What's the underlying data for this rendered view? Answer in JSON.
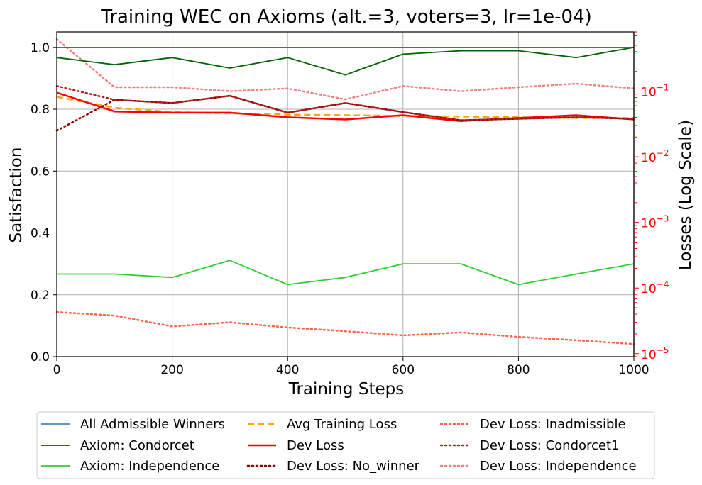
{
  "colors": {
    "right_axis": "#ff0000",
    "grid": "#b0b0b0"
  },
  "chart_data": {
    "type": "line",
    "title": "Training WEC on Axioms (alt.=3, voters=3, lr=1e-04)",
    "xlabel": "Training Steps",
    "ylabel": "Satisfaction",
    "y2label": "Losses (Log Scale)",
    "xlim": [
      0,
      1000
    ],
    "ylim": [
      0,
      1.05
    ],
    "y2lim": [
      9e-06,
      0.8
    ],
    "y2scale": "log",
    "grid": true,
    "legend_position": "bottom-outside",
    "x_ticks": [
      "0",
      "200",
      "400",
      "600",
      "800",
      "1000"
    ],
    "y_ticks": [
      "0.0",
      "0.2",
      "0.4",
      "0.6",
      "0.8",
      "1.0"
    ],
    "y2_ticks": [
      {
        "base": "10",
        "exp": "−5",
        "value": 1e-05
      },
      {
        "base": "10",
        "exp": "−4",
        "value": 0.0001
      },
      {
        "base": "10",
        "exp": "−3",
        "value": 0.001
      },
      {
        "base": "10",
        "exp": "−2",
        "value": 0.01
      },
      {
        "base": "10",
        "exp": "−1",
        "value": 0.1
      }
    ],
    "x": [
      0,
      100,
      200,
      300,
      400,
      500,
      600,
      700,
      800,
      900,
      1000
    ],
    "series": [
      {
        "name": "All Admissible Winners",
        "axis": "left",
        "color": "#1f77b4",
        "dash": "",
        "width": 1.6,
        "values": [
          1.0,
          1.0,
          1.0,
          1.0,
          1.0,
          1.0,
          1.0,
          1.0,
          1.0,
          1.0,
          1.0
        ]
      },
      {
        "name": "Axiom: Condorcet",
        "axis": "left",
        "color": "#006400",
        "dash": "",
        "width": 1.8,
        "values": [
          0.967,
          0.944,
          0.967,
          0.933,
          0.967,
          0.911,
          0.978,
          0.989,
          0.989,
          0.967,
          1.0
        ]
      },
      {
        "name": "Axiom: Independence",
        "axis": "left",
        "color": "#32cd32",
        "dash": "",
        "width": 1.8,
        "values": [
          0.267,
          0.267,
          0.256,
          0.311,
          0.233,
          0.256,
          0.3,
          0.3,
          0.233,
          0.267,
          0.3
        ]
      },
      {
        "name": "Avg Training Loss",
        "axis": "right",
        "color": "#ffa500",
        "dash": "9,5",
        "width": 2.5,
        "values": [
          0.082,
          0.056,
          0.048,
          0.046,
          0.044,
          0.043,
          0.042,
          0.041,
          0.04,
          0.039,
          0.039
        ]
      },
      {
        "name": "Dev Loss",
        "axis": "right",
        "color": "#ff0000",
        "dash": "",
        "width": 2.5,
        "values": [
          0.095,
          0.049,
          0.047,
          0.047,
          0.04,
          0.037,
          0.043,
          0.035,
          0.039,
          0.043,
          0.037
        ]
      },
      {
        "name": "Dev Loss: No_winner",
        "axis": "right",
        "color": "#8b0000",
        "dash": "2,4",
        "width": 2.5,
        "values": [
          0.025,
          0.074,
          0.066,
          0.085,
          0.047,
          0.066,
          0.048,
          0.036,
          0.038,
          0.04,
          0.038
        ]
      },
      {
        "name": "Dev Loss: Inadmissible",
        "axis": "right",
        "color": "#ff6347",
        "dash": "2,4",
        "width": 2.5,
        "values": [
          4.3e-05,
          3.8e-05,
          2.6e-05,
          3e-05,
          2.5e-05,
          2.2e-05,
          1.9e-05,
          2.1e-05,
          1.8e-05,
          1.6e-05,
          1.4e-05
        ]
      },
      {
        "name": "Dev Loss: Condorcet1",
        "axis": "right",
        "color": "#b22222",
        "dash": "2,4",
        "width": 2.5,
        "values": [
          0.12,
          0.074,
          0.066,
          0.085,
          0.047,
          0.066,
          0.048,
          0.036,
          0.038,
          0.04,
          0.038
        ]
      },
      {
        "name": "Dev Loss: Independence",
        "axis": "right",
        "color": "#f08080",
        "dash": "2,4",
        "width": 2.5,
        "values": [
          0.62,
          0.115,
          0.115,
          0.1,
          0.11,
          0.075,
          0.12,
          0.1,
          0.115,
          0.13,
          0.11
        ]
      }
    ],
    "legend_columns": [
      [
        "All Admissible Winners",
        "Axiom: Condorcet",
        "Axiom: Independence"
      ],
      [
        "Avg Training Loss",
        "Dev Loss",
        "Dev Loss: No_winner"
      ],
      [
        "Dev Loss: Inadmissible",
        "Dev Loss: Condorcet1",
        "Dev Loss: Independence"
      ]
    ]
  }
}
